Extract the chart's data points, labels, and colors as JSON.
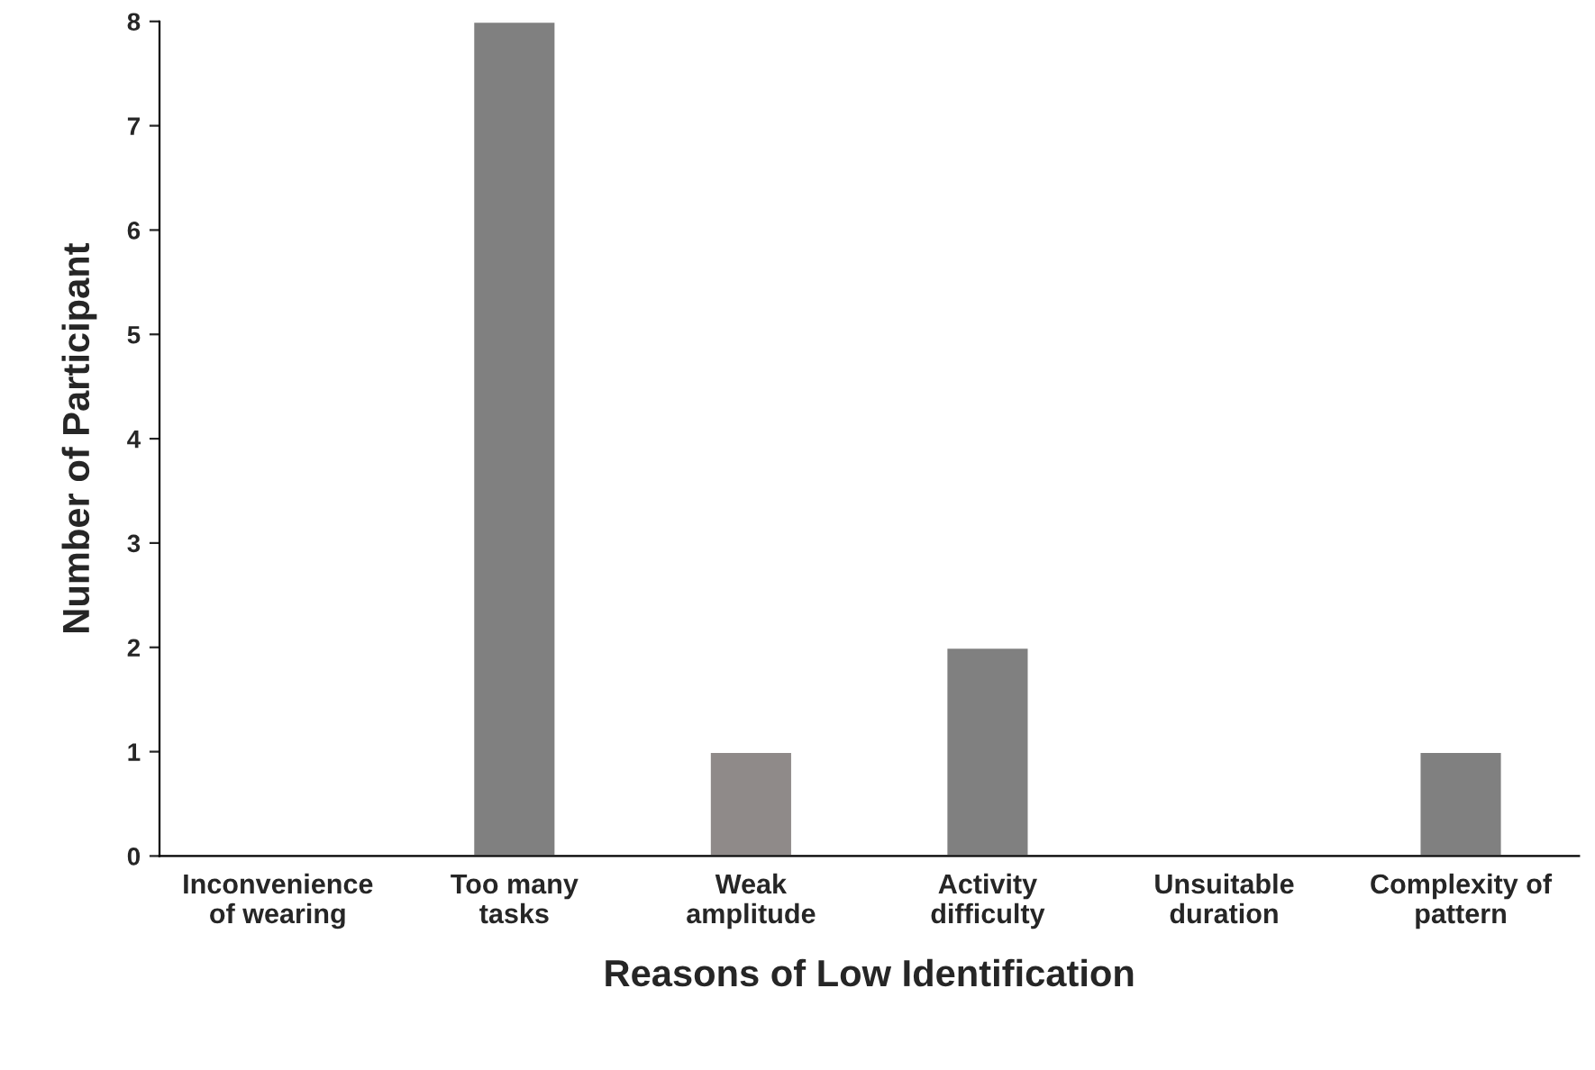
{
  "chart_data": {
    "type": "bar",
    "xlabel": "Reasons of Low Identification",
    "ylabel": "Number of Participant",
    "categories": [
      "Inconvenience\nof wearing",
      "Too many\ntasks",
      "Weak\namplitude",
      "Activity\ndifficulty",
      "Unsuitable\nduration",
      "Complexity of\npattern"
    ],
    "values": [
      0,
      8,
      1,
      2,
      0,
      1
    ],
    "colors": [
      null,
      "#808080",
      "#8f8a89",
      "#808080",
      null,
      "#808080"
    ],
    "ylim": [
      0,
      8
    ],
    "yticks": [
      0,
      1,
      2,
      3,
      4,
      5,
      6,
      7,
      8
    ],
    "grid": false,
    "legend": false
  }
}
